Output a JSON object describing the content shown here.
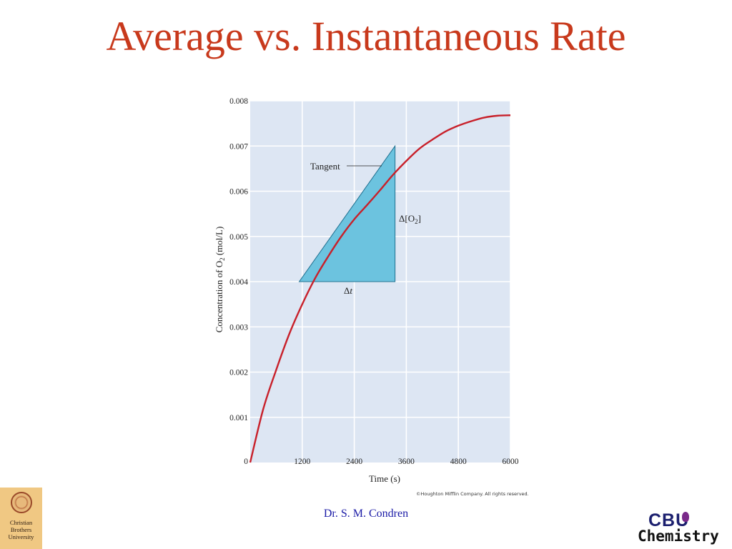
{
  "title": "Average vs. Instantaneous Rate",
  "chart_data": {
    "type": "line",
    "xlabel": "Time (s)",
    "ylabel_main": "Concentration of O",
    "ylabel_sub": "2",
    "ylabel_tail": " (mol/L)",
    "xlim": [
      0,
      6000
    ],
    "ylim": [
      0,
      0.008
    ],
    "x_ticks": [
      0,
      1200,
      2400,
      3600,
      4800,
      6000
    ],
    "x_tick_labels": [
      "0",
      "1200",
      "2400",
      "3600",
      "4800",
      "6000"
    ],
    "y_ticks": [
      0.001,
      0.002,
      0.003,
      0.004,
      0.005,
      0.006,
      0.007,
      0.008
    ],
    "y_tick_labels": [
      "0.001",
      "0.002",
      "0.003",
      "0.004",
      "0.005",
      "0.006",
      "0.007",
      "0.008"
    ],
    "grid": true,
    "series": [
      {
        "color": "#c8202a",
        "x": [
          0,
          300,
          600,
          900,
          1200,
          1500,
          1800,
          2100,
          2400,
          2700,
          3000,
          3300,
          3600,
          3900,
          4200,
          4500,
          4800,
          5100,
          5400,
          5700,
          6000
        ],
        "y": [
          0,
          0.00118,
          0.00205,
          0.00284,
          0.0035,
          0.00408,
          0.00456,
          0.005,
          0.00538,
          0.0057,
          0.00603,
          0.00637,
          0.00667,
          0.00694,
          0.00714,
          0.00732,
          0.00745,
          0.00755,
          0.00763,
          0.00767,
          0.00768
        ]
      }
    ],
    "tangent_triangle": {
      "x0": 1130,
      "y0": 0.004,
      "x1": 3340,
      "y1": 0.004,
      "x2": 3340,
      "y2": 0.007,
      "fill": "#6cc3df",
      "stroke": "#1f6f8f"
    },
    "annotations": {
      "tangent_label": "Tangent",
      "delta_o2_main": "Δ[O",
      "delta_o2_sub": "2",
      "delta_o2_tail": "]",
      "delta_t_main": "Δ",
      "delta_t_var": "t"
    },
    "colors": {
      "plot_bg": "#dde6f3",
      "grid": "#ffffff",
      "curve": "#c8202a"
    }
  },
  "copyright": "©Houghton Mifflin Company. All rights reserved.",
  "author": "Dr. S. M. Condren",
  "logo_left": {
    "line1": "Christian",
    "line2": "Brothers",
    "line3": "University"
  },
  "logo_right": {
    "top": "CBU",
    "bottom": "Chemistry"
  }
}
